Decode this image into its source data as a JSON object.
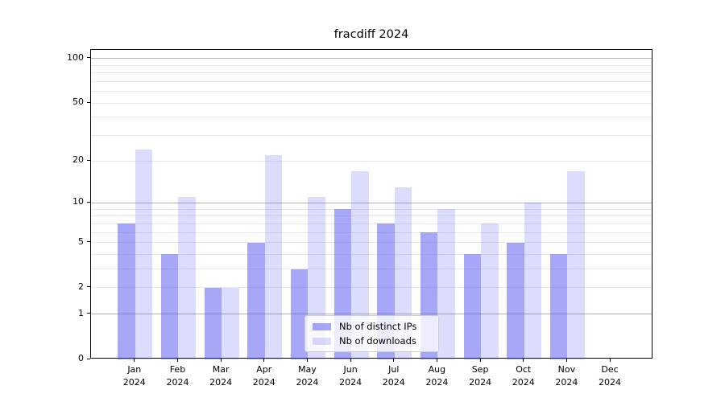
{
  "title": "fracdiff 2024",
  "chart_data": {
    "type": "bar",
    "title": "fracdiff 2024",
    "categories": [
      "Jan 2024",
      "Feb 2024",
      "Mar 2024",
      "Apr 2024",
      "May 2024",
      "Jun 2024",
      "Jul 2024",
      "Aug 2024",
      "Sep 2024",
      "Oct 2024",
      "Nov 2024",
      "Dec 2024"
    ],
    "series": [
      {
        "name": "Nb of distinct IPs",
        "color": "rgba(80,80,240,0.50)",
        "values": [
          7,
          4,
          2,
          5,
          3,
          9,
          7,
          6,
          4,
          5,
          4,
          0
        ]
      },
      {
        "name": "Nb of downloads",
        "color": "rgba(80,80,240,0.20)",
        "values": [
          24,
          11,
          2,
          22,
          11,
          17,
          13,
          9,
          7,
          10,
          17,
          0
        ]
      }
    ],
    "xlabel": "",
    "ylabel": "",
    "y_scale": "log10(1+y)",
    "ylim": [
      0,
      114
    ],
    "y_ticks": [
      0,
      1,
      2,
      5,
      10,
      20,
      50,
      100
    ],
    "y_major_gridlines": [
      1,
      10,
      100
    ],
    "y_minor_gridlines": [
      2,
      3,
      4,
      5,
      6,
      7,
      8,
      9,
      20,
      30,
      40,
      50,
      60,
      70,
      80,
      90
    ],
    "grid": true,
    "legend_position": "lower center",
    "colors": {
      "bar_distinct_ips_on_white": "#a8a8f7",
      "bar_downloads_on_white": "#dcdcfb",
      "major_grid": "#b0b0b0",
      "minor_grid": "#e8e8e8",
      "axis": "#000000",
      "legend_border": "#cccccc"
    }
  }
}
